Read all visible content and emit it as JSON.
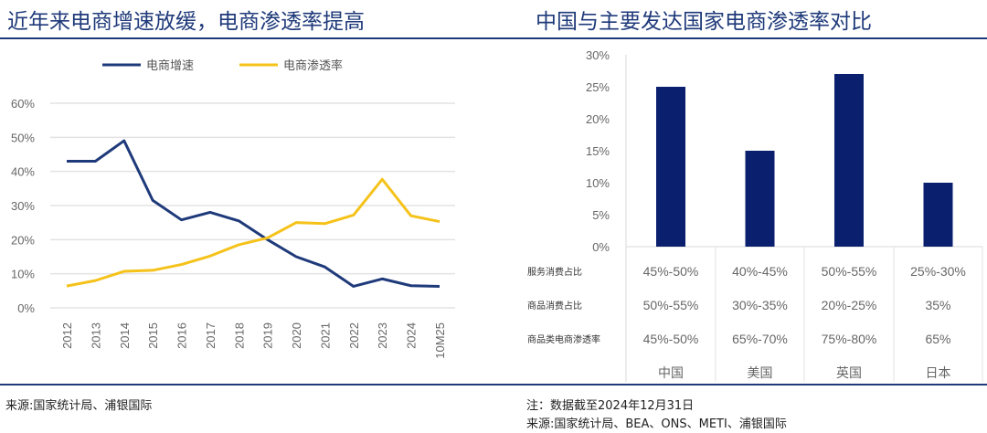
{
  "titles": {
    "left": "近年来电商增速放缓，电商渗透率提高",
    "right": "中国与主要发达国家电商渗透率对比"
  },
  "footer": {
    "left_source": "来源:国家统计局、浦银国际",
    "right_note": "注：数据截至2024年12月31日",
    "right_source": "来源:国家统计局、BEA、ONS、METI、浦银国际"
  },
  "colors": {
    "title": "#1f3a7a",
    "growth": "#1f3a7a",
    "penetration": "#f5c21a",
    "bar": "#0a1f6e"
  },
  "chart_data": [
    {
      "type": "line",
      "categories": [
        "2012",
        "2013",
        "2014",
        "2015",
        "2016",
        "2017",
        "2018",
        "2019",
        "2020",
        "2021",
        "2022",
        "2023",
        "2024",
        "10M25"
      ],
      "series": [
        {
          "name": "电商增速",
          "color": "#1f3a7a",
          "values": [
            43,
            43,
            49,
            31.5,
            25.8,
            28,
            25.5,
            20,
            15,
            12,
            6.3,
            8.5,
            6.5,
            6.3
          ]
        },
        {
          "name": "电商渗透率",
          "color": "#f5c21a",
          "values": [
            6.4,
            8,
            10.7,
            11,
            12.7,
            15.2,
            18.5,
            20.5,
            25,
            24.7,
            27.2,
            37.7,
            27,
            25.3
          ]
        }
      ],
      "yticks": [
        "0%",
        "10%",
        "20%",
        "30%",
        "40%",
        "50%",
        "60%"
      ],
      "ylim": [
        0,
        60
      ],
      "grid": true,
      "legend": "top"
    },
    {
      "type": "bar",
      "categories": [
        "中国",
        "美国",
        "英国",
        "日本"
      ],
      "values": [
        25,
        15,
        27,
        10
      ],
      "yticks": [
        "0%",
        "5%",
        "10%",
        "15%",
        "20%",
        "25%",
        "30%"
      ],
      "ylim": [
        0,
        30
      ],
      "table": {
        "row_labels": [
          "服务消费占比",
          "商品消费占比",
          "商品类电商渗透率"
        ],
        "rows": [
          [
            "45%-50%",
            "40%-45%",
            "50%-55%",
            "25%-30%"
          ],
          [
            "50%-55%",
            "30%-35%",
            "20%-25%",
            "35%"
          ],
          [
            "45%-50%",
            "65%-70%",
            "75%-80%",
            "65%"
          ]
        ]
      }
    }
  ]
}
